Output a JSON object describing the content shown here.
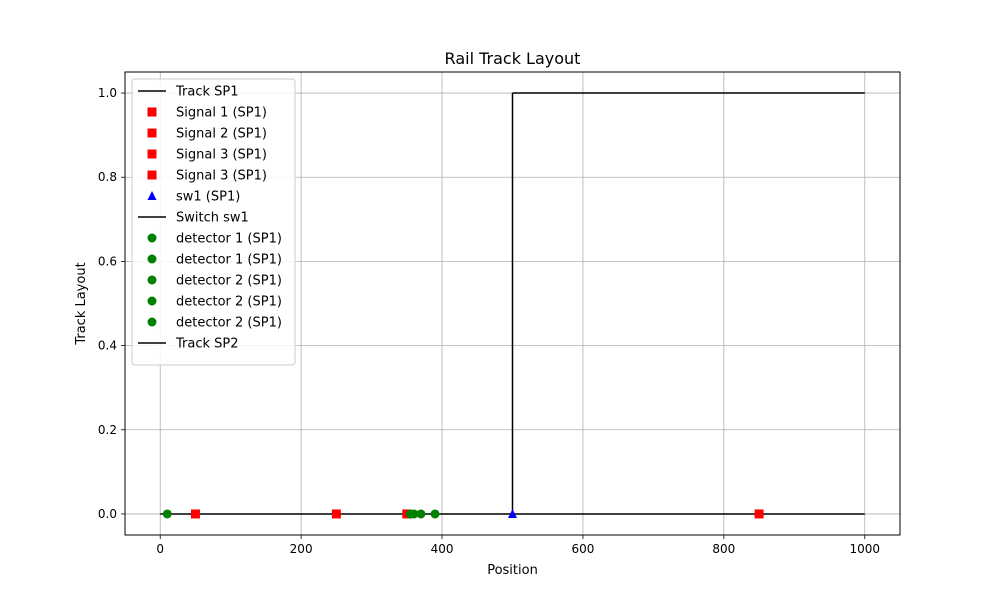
{
  "chart_data": {
    "type": "line",
    "title": "Rail Track Layout",
    "xlabel": "Position",
    "ylabel": "Track Layout",
    "xlim": [
      -50,
      1050
    ],
    "ylim": [
      -0.05,
      1.05
    ],
    "xticks": [
      0,
      200,
      400,
      600,
      800,
      1000
    ],
    "xtick_labels": [
      "0",
      "200",
      "400",
      "600",
      "800",
      "1000"
    ],
    "yticks": [
      0.0,
      0.2,
      0.4,
      0.6,
      0.8,
      1.0
    ],
    "ytick_labels": [
      "0.0",
      "0.2",
      "0.4",
      "0.6",
      "0.8",
      "1.0"
    ],
    "grid": true,
    "legend_position": "upper-left",
    "colors": {
      "track": "#000000",
      "signal": "#ff0000",
      "switch": "#0000ff",
      "detector": "#008000",
      "grid": "#b0b0b0"
    },
    "series": [
      {
        "name": "Track SP1",
        "kind": "line",
        "color": "#000000",
        "x": [
          0,
          1000
        ],
        "y": [
          0,
          0
        ]
      },
      {
        "name": "Signal 1 (SP1)",
        "kind": "square",
        "color": "#ff0000",
        "x": [
          50
        ],
        "y": [
          0
        ]
      },
      {
        "name": "Signal 2 (SP1)",
        "kind": "square",
        "color": "#ff0000",
        "x": [
          250
        ],
        "y": [
          0
        ]
      },
      {
        "name": "Signal 3 (SP1)",
        "kind": "square",
        "color": "#ff0000",
        "x": [
          350
        ],
        "y": [
          0
        ]
      },
      {
        "name": "Signal 3 (SP1)",
        "kind": "square",
        "color": "#ff0000",
        "x": [
          850
        ],
        "y": [
          0
        ]
      },
      {
        "name": "sw1 (SP1)",
        "kind": "triangle",
        "color": "#0000ff",
        "x": [
          500
        ],
        "y": [
          0
        ]
      },
      {
        "name": "Switch sw1",
        "kind": "line",
        "color": "#000000",
        "x": [
          500,
          500
        ],
        "y": [
          0,
          1
        ]
      },
      {
        "name": "detector 1 (SP1)",
        "kind": "circle",
        "color": "#008000",
        "x": [
          10
        ],
        "y": [
          0
        ]
      },
      {
        "name": "detector 1 (SP1)",
        "kind": "circle",
        "color": "#008000",
        "x": [
          355
        ],
        "y": [
          0
        ]
      },
      {
        "name": "detector 2 (SP1)",
        "kind": "circle",
        "color": "#008000",
        "x": [
          360
        ],
        "y": [
          0
        ]
      },
      {
        "name": "detector 2 (SP1)",
        "kind": "circle",
        "color": "#008000",
        "x": [
          370
        ],
        "y": [
          0
        ]
      },
      {
        "name": "detector 2 (SP1)",
        "kind": "circle",
        "color": "#008000",
        "x": [
          390
        ],
        "y": [
          0
        ]
      },
      {
        "name": "Track SP2",
        "kind": "line",
        "color": "#000000",
        "x": [
          500,
          1000
        ],
        "y": [
          1,
          1
        ]
      }
    ]
  }
}
